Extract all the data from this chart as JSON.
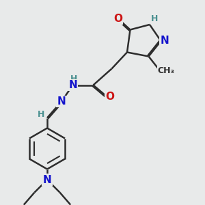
{
  "bg_color": "#e8eaea",
  "bond_color": "#2d2d2d",
  "bond_width": 1.8,
  "dbo": 0.055,
  "atom_colors": {
    "H": "#4a9090",
    "N": "#1414cc",
    "O": "#cc1414",
    "C": "#2d2d2d"
  },
  "fs": 11,
  "fs_small": 9
}
